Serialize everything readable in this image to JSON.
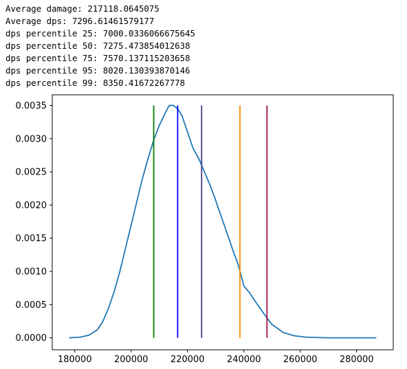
{
  "output_lines": [
    "Average damage: 217118.0645075",
    "Average dps: 7296.61461579177",
    "dps percentile 25: 7000.0336066675645",
    "dps percentile 50: 7275.473854012638",
    "dps percentile 75: 7570.137115203658",
    "dps percentile 95: 8020.130393870146",
    "dps percentile 99: 8350.41672267778"
  ],
  "chart_data": {
    "type": "line",
    "title": "",
    "xlabel": "",
    "ylabel": "",
    "xlim": [
      172000,
      293000
    ],
    "ylim": [
      -0.00018,
      0.00366
    ],
    "x_ticks": [
      180000,
      200000,
      220000,
      240000,
      260000,
      280000
    ],
    "x_tick_labels": [
      "180000",
      "200000",
      "220000",
      "240000",
      "260000",
      "280000"
    ],
    "y_ticks": [
      0,
      0.0005,
      0.001,
      0.0015,
      0.002,
      0.0025,
      0.003,
      0.0035
    ],
    "y_tick_labels": [
      "0.0000",
      "0.0005",
      "0.0010",
      "0.0015",
      "0.0020",
      "0.0025",
      "0.0030",
      "0.0035"
    ],
    "grid": false,
    "series": [
      {
        "color": "#1f77b4",
        "x": [
          178000,
          182000,
          185000,
          188000,
          190000,
          192000,
          194000,
          196000,
          198000,
          200000,
          202000,
          204000,
          206000,
          208000,
          210000,
          212000,
          213500,
          215000,
          216500,
          218000,
          220000,
          222000,
          224000,
          226000,
          228000,
          230000,
          232000,
          234000,
          236000,
          238000,
          240000,
          242000,
          244000,
          246000,
          248000,
          250000,
          254000,
          258000,
          262000,
          266000,
          270000,
          276000,
          282000,
          287000
        ],
        "y": [
          0.0,
          1e-05,
          4e-05,
          0.00012,
          0.00025,
          0.00045,
          0.0007,
          0.001,
          0.00135,
          0.0017,
          0.00205,
          0.0024,
          0.0027,
          0.00298,
          0.0032,
          0.00338,
          0.0035,
          0.0035,
          0.00345,
          0.00335,
          0.0031,
          0.00285,
          0.0027,
          0.0025,
          0.0023,
          0.00207,
          0.00182,
          0.00158,
          0.00133,
          0.0011,
          0.00078,
          0.00068,
          0.00055,
          0.00043,
          0.00031,
          0.0002,
          8e-05,
          3e-05,
          1e-05,
          5e-06,
          0.0,
          0.0,
          0.0,
          0.0
        ]
      }
    ],
    "vertical_lines": [
      {
        "x": 208000,
        "color": "#008000"
      },
      {
        "x": 216500,
        "color": "#0000ff"
      },
      {
        "x": 225000,
        "color": "#483d8b"
      },
      {
        "x": 238600,
        "color": "#ff8c00"
      },
      {
        "x": 248200,
        "color": "#a0124e"
      }
    ]
  }
}
